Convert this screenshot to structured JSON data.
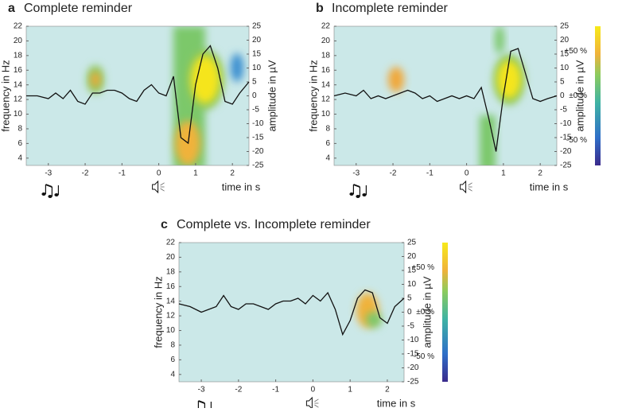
{
  "chart_data": [
    {
      "type": "line",
      "panel": "a",
      "title": "Complete reminder",
      "ylabel": "frequency in Hz",
      "y2label": "amplitude in µV",
      "xlabel": "time in s",
      "x": [
        -3.6,
        -3.3,
        -3.0,
        -2.8,
        -2.6,
        -2.4,
        -2.2,
        -2.0,
        -1.8,
        -1.6,
        -1.4,
        -1.2,
        -1.0,
        -0.8,
        -0.6,
        -0.4,
        -0.2,
        0.0,
        0.2,
        0.4,
        0.6,
        0.8,
        1.0,
        1.2,
        1.4,
        1.6,
        1.8,
        2.0,
        2.2,
        2.45
      ],
      "series": [
        {
          "color": "#111111",
          "axis": "y2",
          "values": [
            0,
            0,
            -1,
            1,
            -1,
            2,
            -2,
            -3,
            1,
            1,
            2,
            2,
            1,
            -1,
            -2,
            2,
            4,
            1,
            0,
            7,
            -15,
            -17,
            4,
            15,
            18,
            10,
            -2,
            -3,
            1,
            5
          ]
        }
      ],
      "xlim": [
        -3.6,
        2.45
      ],
      "xticks": [
        -3,
        -2,
        -1,
        0,
        1,
        2
      ],
      "ylim": [
        3,
        22
      ],
      "yticks": [
        4,
        6,
        8,
        10,
        12,
        14,
        16,
        18,
        20,
        22
      ],
      "y2lim": [
        -25,
        25
      ],
      "y2ticks": [
        -25,
        -20,
        -15,
        -10,
        -5,
        0,
        5,
        10,
        15,
        20,
        25
      ]
    },
    {
      "type": "line",
      "panel": "b",
      "title": "Incomplete reminder",
      "ylabel": "frequency in Hz",
      "y2label": "amplitude in µV",
      "xlabel": "time in s",
      "x": [
        -3.6,
        -3.3,
        -3.0,
        -2.8,
        -2.6,
        -2.4,
        -2.2,
        -2.0,
        -1.8,
        -1.6,
        -1.4,
        -1.2,
        -1.0,
        -0.8,
        -0.6,
        -0.4,
        -0.2,
        0.0,
        0.2,
        0.4,
        0.6,
        0.8,
        1.0,
        1.2,
        1.4,
        1.6,
        1.8,
        2.0,
        2.2,
        2.45
      ],
      "series": [
        {
          "color": "#111111",
          "axis": "y2",
          "values": [
            0,
            1,
            0,
            2,
            -1,
            0,
            -1,
            0,
            1,
            2,
            1,
            -1,
            0,
            -2,
            -1,
            0,
            -1,
            0,
            -1,
            3,
            -8,
            -20,
            0,
            16,
            17,
            8,
            -1,
            -2,
            -1,
            0
          ]
        }
      ],
      "xlim": [
        -3.6,
        2.45
      ],
      "xticks": [
        -3,
        -2,
        -1,
        0,
        1,
        2
      ],
      "ylim": [
        3,
        22
      ],
      "yticks": [
        4,
        6,
        8,
        10,
        12,
        14,
        16,
        18,
        20,
        22
      ],
      "y2lim": [
        -25,
        25
      ],
      "y2ticks": [
        -25,
        -20,
        -15,
        -10,
        -5,
        0,
        5,
        10,
        15,
        20,
        25
      ],
      "colorbar": [
        "+50 %",
        "±0 %",
        "-50 %"
      ]
    },
    {
      "type": "line",
      "panel": "c",
      "title": "Complete vs. Incomplete reminder",
      "ylabel": "frequency in Hz",
      "y2label": "amplitude in µV",
      "xlabel": "time in s",
      "x": [
        -3.6,
        -3.3,
        -3.0,
        -2.8,
        -2.6,
        -2.4,
        -2.2,
        -2.0,
        -1.8,
        -1.6,
        -1.4,
        -1.2,
        -1.0,
        -0.8,
        -0.6,
        -0.4,
        -0.2,
        0.0,
        0.2,
        0.4,
        0.6,
        0.8,
        1.0,
        1.2,
        1.4,
        1.6,
        1.8,
        2.0,
        2.2,
        2.45
      ],
      "series": [
        {
          "color": "#111111",
          "axis": "y2",
          "values": [
            3,
            2,
            0,
            1,
            2,
            6,
            2,
            1,
            3,
            3,
            2,
            1,
            3,
            4,
            4,
            5,
            3,
            6,
            4,
            7,
            1,
            -8,
            -3,
            5,
            8,
            7,
            -2,
            -4,
            2,
            5
          ]
        }
      ],
      "xlim": [
        -3.6,
        2.45
      ],
      "xticks": [
        -3,
        -2,
        -1,
        0,
        1,
        2
      ],
      "ylim": [
        3,
        22
      ],
      "yticks": [
        4,
        6,
        8,
        10,
        12,
        14,
        16,
        18,
        20,
        22
      ],
      "y2lim": [
        -25,
        25
      ],
      "y2ticks": [
        -25,
        -20,
        -15,
        -10,
        -5,
        0,
        5,
        10,
        15,
        20,
        25
      ],
      "colorbar": [
        "+50 %",
        "±0 %",
        "-50 %"
      ]
    }
  ]
}
